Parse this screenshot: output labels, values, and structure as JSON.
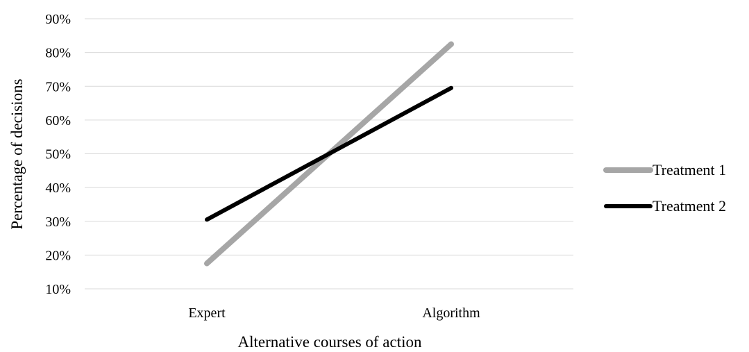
{
  "chart_data": {
    "type": "line",
    "categories": [
      "Expert",
      "Algorithm"
    ],
    "series": [
      {
        "name": "Treatment 1",
        "values": [
          17.5,
          82.5
        ],
        "color": "#a6a6a6"
      },
      {
        "name": "Treatment 2",
        "values": [
          30.5,
          69.5
        ],
        "color": "#000000"
      }
    ],
    "yticks": [
      "10%",
      "20%",
      "30%",
      "40%",
      "50%",
      "60%",
      "70%",
      "80%",
      "90%"
    ],
    "ylim": [
      10,
      90
    ],
    "xlabel": "Alternative courses of action",
    "ylabel": "Percentage of decisions",
    "grid": true,
    "legend_position": "right"
  }
}
